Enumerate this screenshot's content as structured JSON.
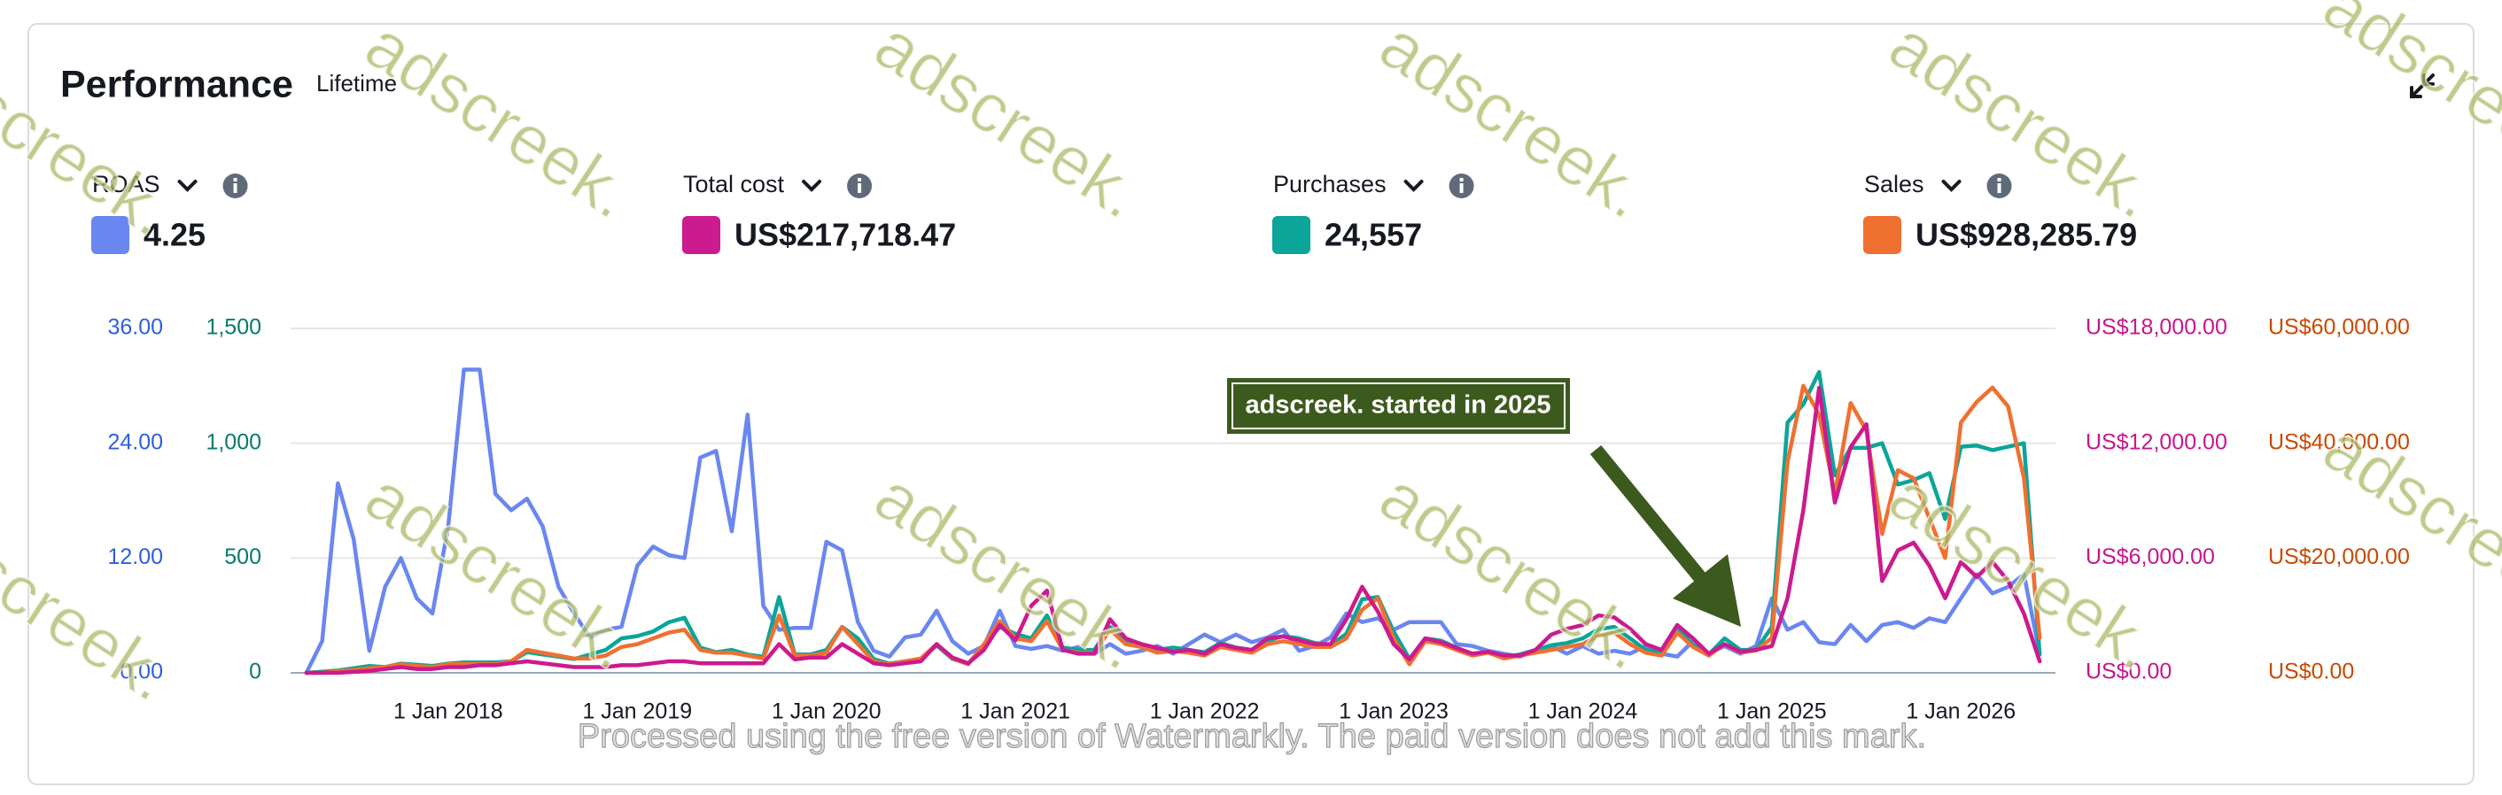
{
  "chart_data": {
    "type": "line",
    "title": "Performance",
    "subtitle": "Lifetime",
    "annotation": "adscreek. started in 2025",
    "grid": true,
    "x": [
      "2017-04",
      "2017-05",
      "2017-06",
      "2017-07",
      "2017-08",
      "2017-09",
      "2017-10",
      "2017-11",
      "2017-12",
      "2018-01",
      "2018-02",
      "2018-03",
      "2018-04",
      "2018-05",
      "2018-06",
      "2018-07",
      "2018-08",
      "2018-09",
      "2018-10",
      "2018-11",
      "2018-12",
      "2019-01",
      "2019-02",
      "2019-03",
      "2019-04",
      "2019-05",
      "2019-06",
      "2019-07",
      "2019-08",
      "2019-09",
      "2019-10",
      "2019-11",
      "2019-12",
      "2020-01",
      "2020-02",
      "2020-03",
      "2020-04",
      "2020-05",
      "2020-06",
      "2020-07",
      "2020-08",
      "2020-09",
      "2020-10",
      "2020-11",
      "2020-12",
      "2021-01",
      "2021-02",
      "2021-03",
      "2021-04",
      "2021-05",
      "2021-06",
      "2021-07",
      "2021-08",
      "2021-09",
      "2021-10",
      "2021-11",
      "2021-12",
      "2022-01",
      "2022-02",
      "2022-03",
      "2022-04",
      "2022-05",
      "2022-06",
      "2022-07",
      "2022-08",
      "2022-09",
      "2022-10",
      "2022-11",
      "2022-12",
      "2023-01",
      "2023-02",
      "2023-03",
      "2023-04",
      "2023-05",
      "2023-06",
      "2023-07",
      "2023-08",
      "2023-09",
      "2023-10",
      "2023-11",
      "2023-12",
      "2024-01",
      "2024-02",
      "2024-03",
      "2024-04",
      "2024-05",
      "2024-06",
      "2024-07",
      "2024-08",
      "2024-09",
      "2024-10",
      "2024-11",
      "2024-12",
      "2025-01",
      "2025-02",
      "2025-03",
      "2025-04",
      "2025-05",
      "2025-06",
      "2025-07",
      "2025-08",
      "2025-09",
      "2025-10",
      "2025-11",
      "2025-12",
      "2026-01",
      "2026-02",
      "2026-03",
      "2026-04",
      "2026-05",
      "2026-06"
    ],
    "xlim": [
      "2017-03",
      "2026-07"
    ],
    "xticks": [
      {
        "value": "2018-01",
        "label": "1 Jan 2018"
      },
      {
        "value": "2019-01",
        "label": "1 Jan 2019"
      },
      {
        "value": "2020-01",
        "label": "1 Jan 2020"
      },
      {
        "value": "2021-01",
        "label": "1 Jan 2021"
      },
      {
        "value": "2022-01",
        "label": "1 Jan 2022"
      },
      {
        "value": "2023-01",
        "label": "1 Jan 2023"
      },
      {
        "value": "2024-01",
        "label": "1 Jan 2024"
      },
      {
        "value": "2025-01",
        "label": "1 Jan 2025"
      },
      {
        "value": "2026-01",
        "label": "1 Jan 2026"
      }
    ],
    "ylim": [
      0,
      36
    ],
    "yticks": [
      {
        "value": 0,
        "label": "0.00"
      },
      {
        "value": 12,
        "label": "12.00"
      },
      {
        "value": 24,
        "label": "24.00"
      },
      {
        "value": 36,
        "label": "36.00"
      }
    ],
    "y2lim": [
      0,
      1500
    ],
    "y2ticks": [
      0,
      500,
      {
        "value": 1000,
        "label": "1,000"
      },
      {
        "value": 1500,
        "label": "1,500"
      }
    ],
    "y3lim": [
      0,
      18000
    ],
    "y3ticks": [
      {
        "value": 0,
        "label": "US$0.00"
      },
      {
        "value": 6000,
        "label": "US$6,000.00"
      },
      {
        "value": 12000,
        "label": "US$12,000.00"
      },
      {
        "value": 18000,
        "label": "US$18,000.00"
      }
    ],
    "y4lim": [
      0,
      60000
    ],
    "y4ticks": [
      {
        "value": 0,
        "label": "US$0.00"
      },
      {
        "value": 20000,
        "label": "US$20,000.00"
      },
      {
        "value": 40000,
        "label": "US$40,000.00"
      },
      {
        "value": 60000,
        "label": "US$60,000.00"
      }
    ],
    "series": [
      {
        "name": "ROAS",
        "summary": "4.25",
        "color": "#6a87f0",
        "tick_color": "#2e5ee0",
        "axis": "y",
        "values": [
          0,
          3.3,
          19.8,
          14,
          2.3,
          9,
          12,
          7.8,
          6.2,
          15.3,
          31.7,
          31.7,
          18.7,
          17,
          18.2,
          15.3,
          9,
          6.2,
          3.7,
          4.5,
          4.8,
          11.2,
          13.2,
          12.3,
          12,
          22.5,
          23.2,
          14.8,
          27,
          7,
          4.5,
          4.7,
          4.7,
          13.7,
          12.8,
          5.3,
          2.3,
          1.7,
          3.7,
          4,
          6.5,
          3.3,
          2,
          2.8,
          6.5,
          2.8,
          2.5,
          2.8,
          2.3,
          2.7,
          2,
          3,
          2,
          2.3,
          2.8,
          2,
          3,
          4,
          3.2,
          4,
          3.2,
          3.7,
          4.5,
          2.3,
          2.8,
          3.7,
          6.2,
          5.3,
          5.7,
          4.5,
          5.3,
          5.3,
          5.3,
          3,
          2.8,
          2.3,
          2,
          1.7,
          2.3,
          2.8,
          2,
          2.8,
          2,
          2.3,
          2,
          2.8,
          2,
          1.7,
          3.3,
          2,
          2.8,
          2,
          2.8,
          7.8,
          4.5,
          5.3,
          3.2,
          3,
          5,
          3.3,
          5,
          5.3,
          4.7,
          5.7,
          5.3,
          7.8,
          10.3,
          8.3,
          9,
          10.3,
          2
        ]
      },
      {
        "name": "Total cost",
        "summary": "US$217,718.47",
        "color": "#cc1a8f",
        "tick_color": "#c7168d",
        "axis": "y3",
        "values": [
          0,
          0,
          0,
          50,
          100,
          200,
          300,
          200,
          200,
          300,
          300,
          400,
          400,
          500,
          600,
          500,
          400,
          300,
          300,
          300,
          400,
          400,
          500,
          600,
          600,
          500,
          500,
          500,
          500,
          500,
          1500,
          700,
          800,
          800,
          1500,
          1000,
          500,
          400,
          500,
          600,
          1500,
          800,
          500,
          1200,
          2500,
          1700,
          3500,
          4300,
          1200,
          1000,
          1000,
          2800,
          1800,
          1500,
          1300,
          1100,
          1200,
          1000,
          1500,
          1300,
          1200,
          1800,
          1900,
          1700,
          1500,
          1500,
          2800,
          4500,
          3200,
          1500,
          700,
          1800,
          1600,
          1300,
          1000,
          1100,
          900,
          900,
          1200,
          2000,
          2300,
          2500,
          3000,
          2900,
          2300,
          1500,
          1200,
          2500,
          1800,
          1000,
          1500,
          1100,
          1200,
          1400,
          3900,
          8500,
          14900,
          8900,
          11800,
          13000,
          4800,
          6400,
          6800,
          5600,
          3900,
          5800,
          5000,
          5800,
          4800,
          3100,
          600
        ]
      },
      {
        "name": "Purchases",
        "summary": "24,557",
        "color": "#0ba59a",
        "tick_color": "#077a6c",
        "axis": "y2",
        "values": [
          0,
          5,
          10,
          20,
          30,
          25,
          40,
          35,
          30,
          40,
          45,
          45,
          45,
          50,
          90,
          80,
          70,
          60,
          80,
          100,
          150,
          160,
          180,
          220,
          240,
          110,
          90,
          100,
          80,
          70,
          330,
          80,
          80,
          100,
          200,
          150,
          60,
          40,
          50,
          60,
          120,
          60,
          40,
          120,
          200,
          170,
          150,
          250,
          110,
          100,
          100,
          200,
          140,
          120,
          100,
          110,
          100,
          90,
          130,
          110,
          100,
          140,
          160,
          150,
          130,
          120,
          170,
          320,
          330,
          180,
          60,
          150,
          140,
          110,
          80,
          90,
          70,
          80,
          100,
          120,
          130,
          150,
          190,
          200,
          150,
          100,
          90,
          200,
          120,
          80,
          150,
          100,
          100,
          200,
          1090,
          1170,
          1310,
          860,
          980,
          980,
          1000,
          820,
          840,
          870,
          670,
          985,
          990,
          970,
          985,
          1000,
          80
        ]
      },
      {
        "name": "Sales",
        "summary": "US$928,285.79",
        "color": "#f07030",
        "tick_color": "#c84a00",
        "axis": "y4",
        "values": [
          0,
          0,
          300,
          500,
          800,
          1000,
          1500,
          1200,
          1000,
          1500,
          1500,
          1500,
          1500,
          2000,
          4000,
          3500,
          3000,
          2500,
          2500,
          3000,
          4500,
          5000,
          6000,
          7000,
          7500,
          4000,
          3500,
          3500,
          3000,
          2500,
          10000,
          3000,
          3000,
          3500,
          8000,
          5000,
          2000,
          1500,
          2000,
          2500,
          5000,
          2500,
          1500,
          5000,
          9000,
          6000,
          5500,
          9000,
          4000,
          3500,
          3500,
          7500,
          5000,
          4500,
          3500,
          3800,
          3500,
          3000,
          4500,
          4000,
          3500,
          5000,
          5500,
          5000,
          4500,
          4500,
          6000,
          11000,
          13000,
          6000,
          1500,
          5500,
          5000,
          4000,
          3000,
          3500,
          2500,
          3000,
          3500,
          4000,
          4500,
          5000,
          6500,
          7000,
          5000,
          3500,
          3000,
          7000,
          4500,
          3000,
          5000,
          3500,
          3900,
          6100,
          36700,
          50000,
          45000,
          31100,
          47000,
          42200,
          24200,
          35300,
          33900,
          26900,
          20000,
          43600,
          47200,
          49700,
          46400,
          33900,
          6100
        ]
      }
    ]
  },
  "watermark": "adscreek.",
  "footer_note": "Processed using the free version of Watermarkly. The paid version does not add this mark."
}
